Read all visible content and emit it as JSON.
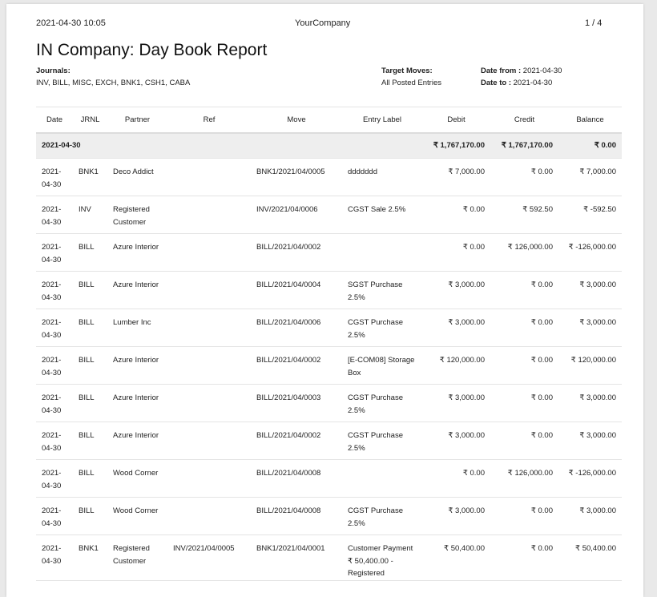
{
  "header": {
    "datetime": "2021-04-30 10:05",
    "company": "YourCompany",
    "page": "1 / 4"
  },
  "title": "IN Company: Day Book Report",
  "journals": {
    "label": "Journals:",
    "value": "INV, BILL, MISC, EXCH, BNK1, CSH1, CABA"
  },
  "target": {
    "label": "Target Moves:",
    "value": "All Posted Entries"
  },
  "date_from": {
    "label": "Date from :",
    "value": "2021-04-30"
  },
  "date_to": {
    "label": "Date to :",
    "value": "2021-04-30"
  },
  "columns": [
    "Date",
    "JRNL",
    "Partner",
    "Ref",
    "Move",
    "Entry Label",
    "Debit",
    "Credit",
    "Balance"
  ],
  "group": {
    "date": "2021-04-30",
    "debit": "₹ 1,767,170.00",
    "credit": "₹ 1,767,170.00",
    "balance": "₹ 0.00"
  },
  "rows": [
    {
      "date": "2021-04-30",
      "jrnl": "BNK1",
      "partner": "Deco Addict",
      "ref": "",
      "move": "BNK1/2021/04/0005",
      "label": "ddddddd",
      "debit": "₹ 7,000.00",
      "credit": "₹ 0.00",
      "balance": "₹ 7,000.00"
    },
    {
      "date": "2021-04-30",
      "jrnl": "INV",
      "partner": "Registered Customer",
      "ref": "",
      "move": "INV/2021/04/0006",
      "label": "CGST Sale 2.5%",
      "debit": "₹ 0.00",
      "credit": "₹ 592.50",
      "balance": "₹ -592.50"
    },
    {
      "date": "2021-04-30",
      "jrnl": "BILL",
      "partner": "Azure Interior",
      "ref": "",
      "move": "BILL/2021/04/0002",
      "label": "",
      "debit": "₹ 0.00",
      "credit": "₹ 126,000.00",
      "balance": "₹ -126,000.00"
    },
    {
      "date": "2021-04-30",
      "jrnl": "BILL",
      "partner": "Azure Interior",
      "ref": "",
      "move": "BILL/2021/04/0004",
      "label": "SGST Purchase 2.5%",
      "debit": "₹ 3,000.00",
      "credit": "₹ 0.00",
      "balance": "₹ 3,000.00"
    },
    {
      "date": "2021-04-30",
      "jrnl": "BILL",
      "partner": "Lumber Inc",
      "ref": "",
      "move": "BILL/2021/04/0006",
      "label": "CGST Purchase 2.5%",
      "debit": "₹ 3,000.00",
      "credit": "₹ 0.00",
      "balance": "₹ 3,000.00"
    },
    {
      "date": "2021-04-30",
      "jrnl": "BILL",
      "partner": "Azure Interior",
      "ref": "",
      "move": "BILL/2021/04/0002",
      "label": "[E-COM08] Storage Box",
      "debit": "₹ 120,000.00",
      "credit": "₹ 0.00",
      "balance": "₹ 120,000.00"
    },
    {
      "date": "2021-04-30",
      "jrnl": "BILL",
      "partner": "Azure Interior",
      "ref": "",
      "move": "BILL/2021/04/0003",
      "label": "CGST Purchase 2.5%",
      "debit": "₹ 3,000.00",
      "credit": "₹ 0.00",
      "balance": "₹ 3,000.00"
    },
    {
      "date": "2021-04-30",
      "jrnl": "BILL",
      "partner": "Azure Interior",
      "ref": "",
      "move": "BILL/2021/04/0002",
      "label": "CGST Purchase 2.5%",
      "debit": "₹ 3,000.00",
      "credit": "₹ 0.00",
      "balance": "₹ 3,000.00"
    },
    {
      "date": "2021-04-30",
      "jrnl": "BILL",
      "partner": "Wood Corner",
      "ref": "",
      "move": "BILL/2021/04/0008",
      "label": "",
      "debit": "₹ 0.00",
      "credit": "₹ 126,000.00",
      "balance": "₹ -126,000.00"
    },
    {
      "date": "2021-04-30",
      "jrnl": "BILL",
      "partner": "Wood Corner",
      "ref": "",
      "move": "BILL/2021/04/0008",
      "label": "CGST Purchase 2.5%",
      "debit": "₹ 3,000.00",
      "credit": "₹ 0.00",
      "balance": "₹ 3,000.00"
    },
    {
      "date": "2021-04-30",
      "jrnl": "BNK1",
      "partner": "Registered Customer",
      "ref": "INV/2021/04/0005",
      "move": "BNK1/2021/04/0001",
      "label": "Customer Payment ₹ 50,400.00 - Registered",
      "debit": "₹ 50,400.00",
      "credit": "₹ 0.00",
      "balance": "₹ 50,400.00"
    }
  ]
}
